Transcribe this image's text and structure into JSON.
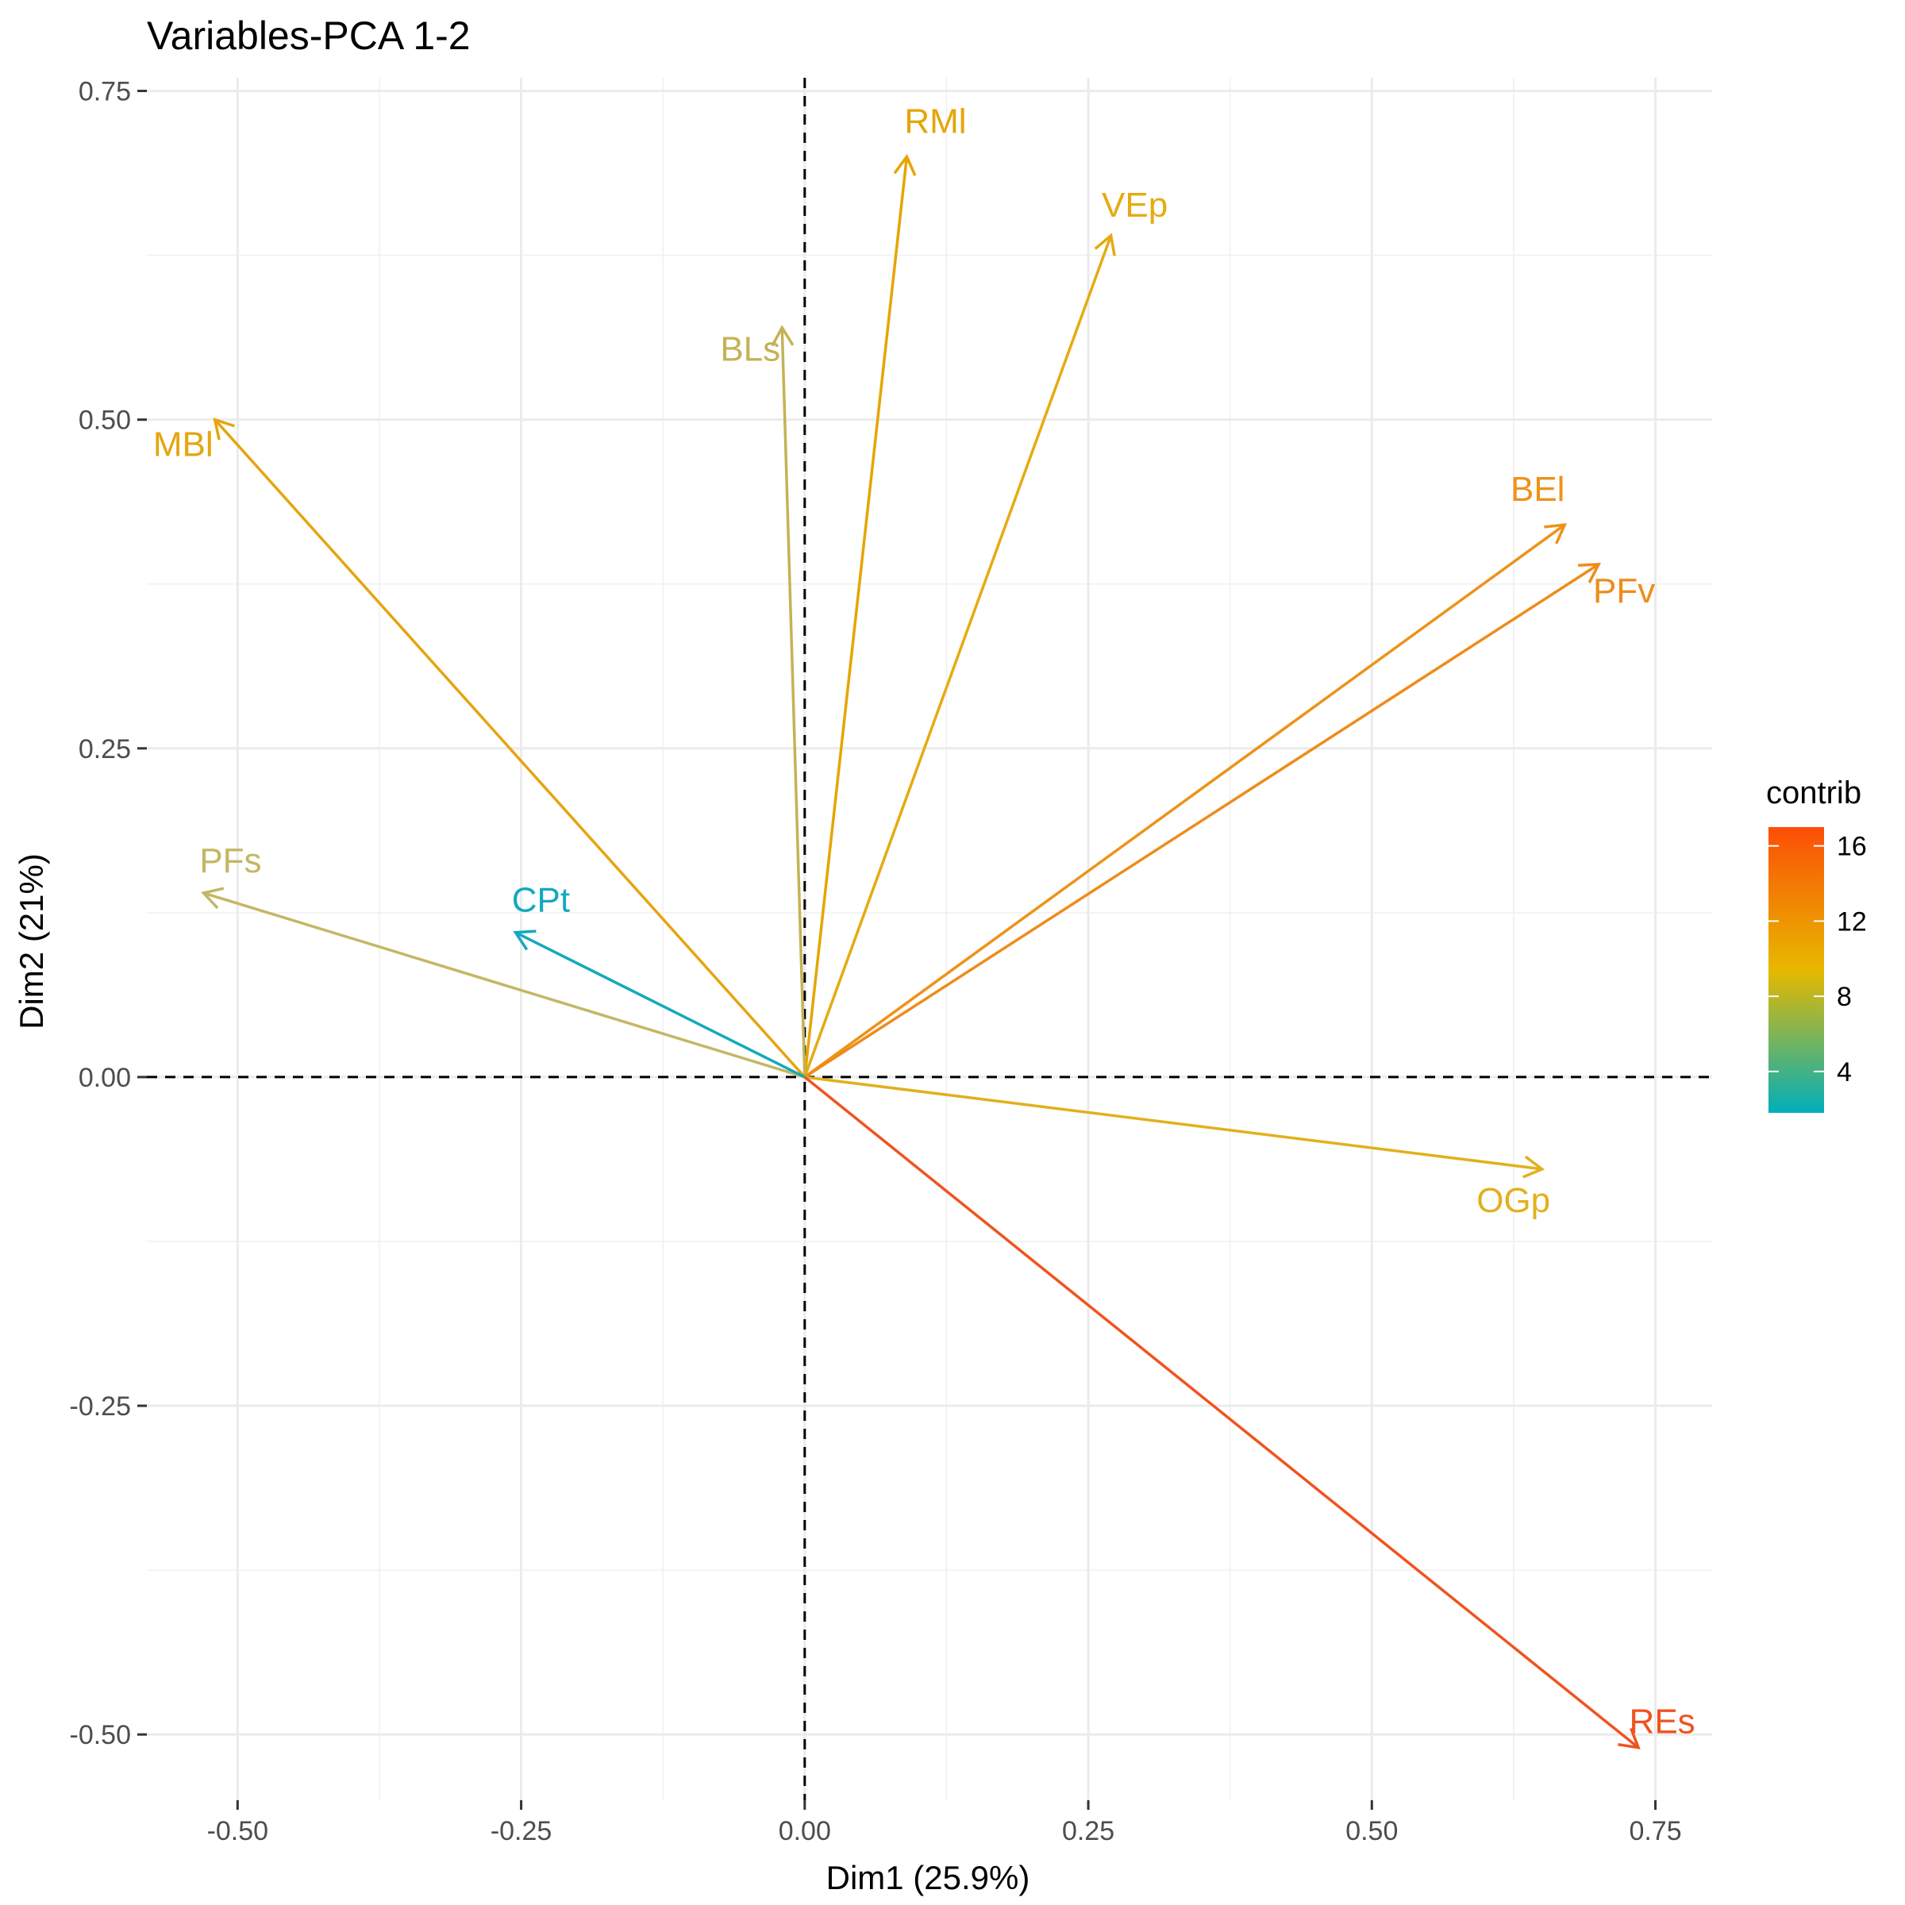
{
  "chart_data": {
    "type": "scatter",
    "subtype": "pca-variable-correlation-arrows",
    "title": "Variables-PCA 1-2",
    "xlabel": "Dim1 (25.9%)",
    "ylabel": "Dim2 (21%)",
    "xlim": [
      -0.58,
      0.8
    ],
    "ylim": [
      -0.55,
      0.76
    ],
    "x_ticks": [
      -0.5,
      -0.25,
      0.0,
      0.25,
      0.5,
      0.75
    ],
    "x_tick_labels": [
      "-0.50",
      "-0.25",
      "0.00",
      "0.25",
      "0.50",
      "0.75"
    ],
    "y_ticks": [
      -0.5,
      -0.25,
      0.0,
      0.25,
      0.5,
      0.75
    ],
    "y_tick_labels": [
      "-0.50",
      "-0.25",
      "0.00",
      "0.25",
      "0.50",
      "0.75"
    ],
    "grid": true,
    "reference_lines": "dashed lines at x = 0 and y = 0",
    "variables": [
      {
        "name": "RMl",
        "x": 0.09,
        "y": 0.7,
        "contrib": 11.2,
        "color": "#E5A505"
      },
      {
        "name": "VEp",
        "x": 0.27,
        "y": 0.64,
        "contrib": 10.6,
        "color": "#E5AB12"
      },
      {
        "name": "BLs",
        "x": -0.02,
        "y": 0.57,
        "contrib": 7.5,
        "color": "#C3B356"
      },
      {
        "name": "MBl",
        "x": -0.52,
        "y": 0.5,
        "contrib": 11.0,
        "color": "#E5A50F"
      },
      {
        "name": "BEl",
        "x": 0.67,
        "y": 0.42,
        "contrib": 13.3,
        "color": "#EE9218"
      },
      {
        "name": "PFv",
        "x": 0.7,
        "y": 0.39,
        "contrib": 13.5,
        "color": "#EE8C1A"
      },
      {
        "name": "PFs",
        "x": -0.53,
        "y": 0.14,
        "contrib": 6.8,
        "color": "#C3B763"
      },
      {
        "name": "CPt",
        "x": -0.255,
        "y": 0.11,
        "contrib": 2.1,
        "color": "#14A8C0"
      },
      {
        "name": "OGp",
        "x": 0.65,
        "y": -0.07,
        "contrib": 9.7,
        "color": "#E1B01E"
      },
      {
        "name": "REs",
        "x": 0.735,
        "y": -0.51,
        "contrib": 16.8,
        "color": "#F0531E"
      }
    ],
    "legend": {
      "title": "contrib",
      "position": "right",
      "ticks": [
        4,
        8,
        12,
        16
      ],
      "range": [
        1.8,
        17.0
      ],
      "gradient_colors": [
        "#00AFBB",
        "#E7B800",
        "#FC4E07"
      ]
    }
  }
}
